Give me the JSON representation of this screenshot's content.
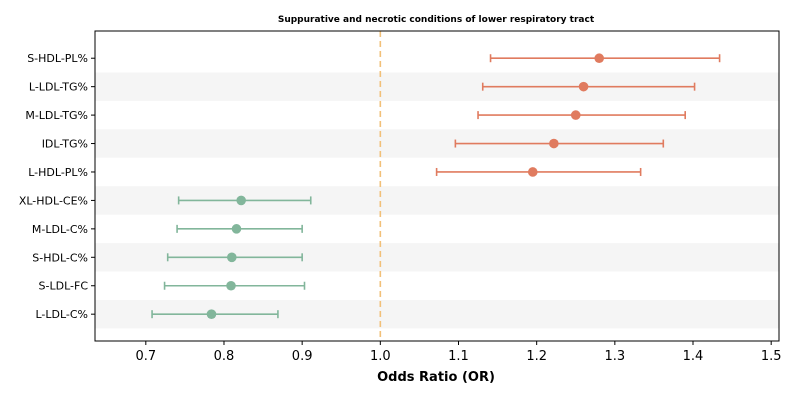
{
  "chart_data": {
    "type": "forest",
    "title": "Suppurative and necrotic conditions of lower respiratory tract",
    "xlabel": "Odds Ratio (OR)",
    "xlim": [
      0.635,
      1.51
    ],
    "xticks": [
      0.7,
      0.8,
      0.9,
      1.0,
      1.1,
      1.2,
      1.3,
      1.4,
      1.5
    ],
    "xtick_labels": [
      "0.7",
      "0.8",
      "0.9",
      "1.0",
      "1.1",
      "1.2",
      "1.3",
      "1.4",
      "1.5"
    ],
    "reference_line": 1.0,
    "rows": [
      {
        "label": "S-HDL-PL%",
        "or": 1.28,
        "lower": 1.141,
        "upper": 1.434
      },
      {
        "label": "L-LDL-TG%",
        "or": 1.26,
        "lower": 1.131,
        "upper": 1.402
      },
      {
        "label": "M-LDL-TG%",
        "or": 1.25,
        "lower": 1.125,
        "upper": 1.39
      },
      {
        "label": "IDL-TG%",
        "or": 1.222,
        "lower": 1.096,
        "upper": 1.362
      },
      {
        "label": "L-HDL-PL%",
        "or": 1.195,
        "lower": 1.072,
        "upper": 1.333
      },
      {
        "label": "XL-HDL-CE%",
        "or": 0.822,
        "lower": 0.742,
        "upper": 0.911
      },
      {
        "label": "M-LDL-C%",
        "or": 0.816,
        "lower": 0.74,
        "upper": 0.9
      },
      {
        "label": "S-HDL-C%",
        "or": 0.81,
        "lower": 0.728,
        "upper": 0.9
      },
      {
        "label": "S-LDL-FC",
        "or": 0.809,
        "lower": 0.724,
        "upper": 0.903
      },
      {
        "label": "L-LDL-C%",
        "or": 0.784,
        "lower": 0.708,
        "upper": 0.869
      }
    ],
    "colors": {
      "risk": "#e07b5f",
      "protective": "#82b69b",
      "reference": "#f2c078",
      "band": "#f5f5f5",
      "axis": "#000000"
    }
  }
}
